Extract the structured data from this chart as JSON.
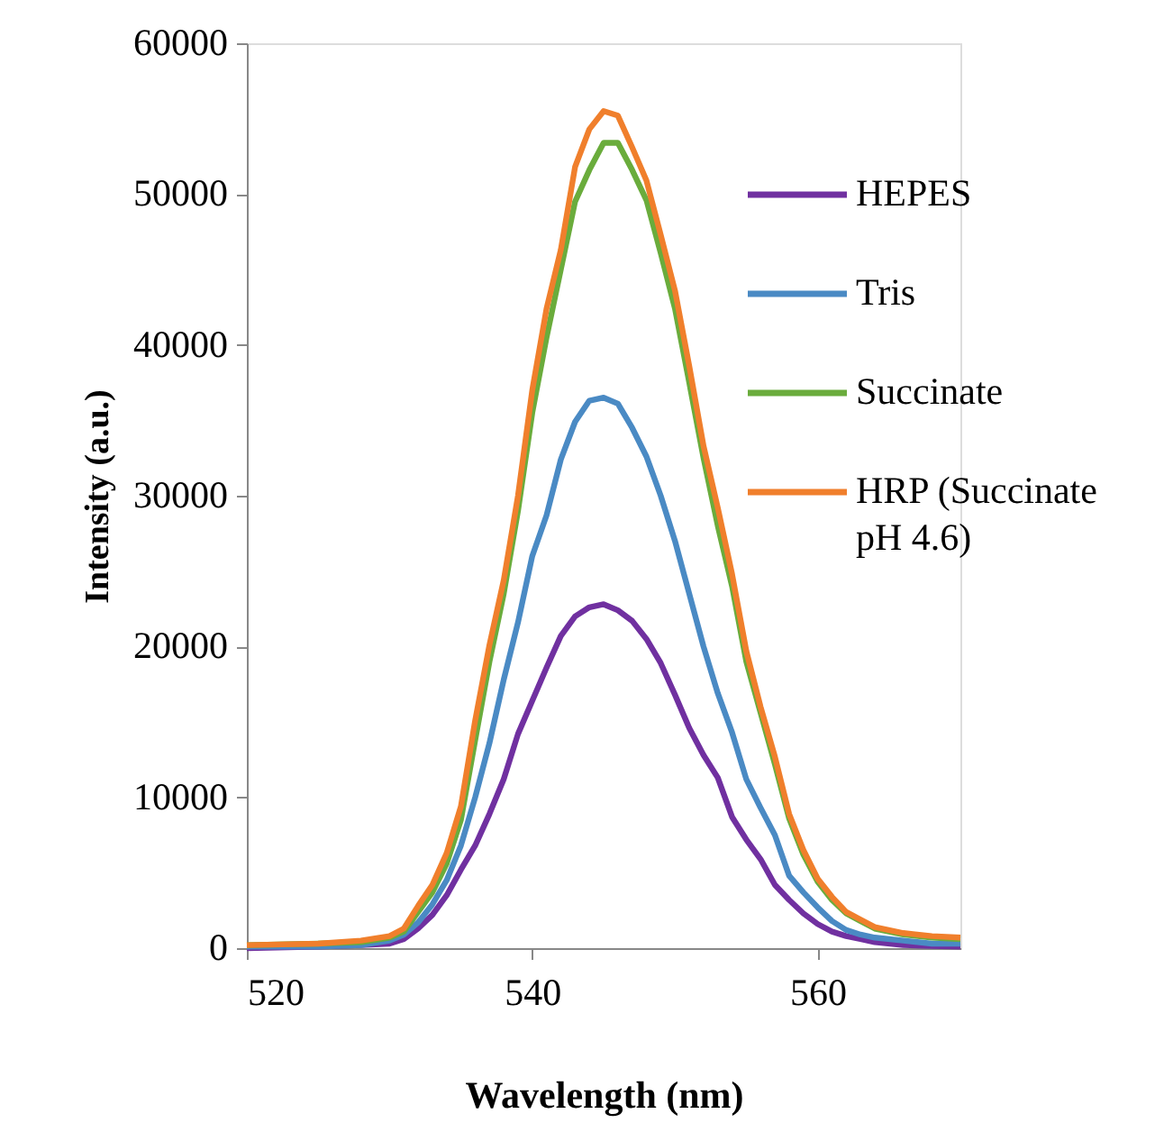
{
  "chart_data": {
    "type": "line",
    "xlabel": "Wavelength (nm)",
    "ylabel": "Intensity (a.u.)",
    "x": [
      520,
      525,
      528,
      530,
      531,
      532,
      533,
      534,
      535,
      536,
      537,
      538,
      539,
      540,
      541,
      542,
      543,
      544,
      545,
      546,
      547,
      548,
      549,
      550,
      551,
      552,
      553,
      554,
      555,
      556,
      557,
      558,
      559,
      560,
      561,
      562,
      563,
      564,
      566,
      568,
      570
    ],
    "series": [
      {
        "name": "HEPES",
        "color": "#7030a0",
        "values": [
          0,
          100,
          200,
          300,
          600,
          1300,
          2200,
          3500,
          5200,
          6800,
          8900,
          11200,
          14200,
          16400,
          18600,
          20700,
          22000,
          22600,
          22800,
          22400,
          21700,
          20500,
          18900,
          16800,
          14600,
          12800,
          11300,
          8700,
          7200,
          5900,
          4200,
          3200,
          2300,
          1600,
          1100,
          800,
          600,
          400,
          200,
          150,
          100
        ]
      },
      {
        "name": "Tris",
        "color": "#4a8ac4",
        "values": [
          100,
          100,
          200,
          500,
          900,
          1700,
          2900,
          4500,
          6800,
          10000,
          13600,
          17800,
          21600,
          26000,
          28700,
          32400,
          34900,
          36300,
          36500,
          36100,
          34500,
          32600,
          30000,
          27000,
          23500,
          20000,
          16900,
          14300,
          11200,
          9300,
          7500,
          4800,
          3700,
          2700,
          1800,
          1200,
          900,
          700,
          500,
          300,
          300
        ]
      },
      {
        "name": "Succinate",
        "color": "#6aac3c",
        "values": [
          200,
          300,
          400,
          700,
          1100,
          2400,
          3700,
          5600,
          8500,
          13800,
          19000,
          23500,
          29000,
          35500,
          40500,
          45000,
          49500,
          51600,
          53400,
          53400,
          51600,
          49600,
          46100,
          42400,
          37500,
          32500,
          28000,
          24000,
          19000,
          15600,
          12200,
          8600,
          6200,
          4400,
          3200,
          2300,
          1800,
          1300,
          900,
          700,
          600
        ]
      },
      {
        "name": "HRP (Succinate pH 4.6)",
        "color": "#f07f2c",
        "values": [
          200,
          300,
          500,
          800,
          1300,
          2800,
          4200,
          6300,
          9400,
          15100,
          20100,
          24400,
          30000,
          37000,
          42400,
          46300,
          51800,
          54300,
          55500,
          55200,
          53100,
          50900,
          47300,
          43600,
          38600,
          33300,
          29200,
          24800,
          19700,
          16000,
          12700,
          8900,
          6500,
          4600,
          3400,
          2400,
          1900,
          1400,
          1000,
          800,
          700
        ]
      }
    ],
    "xlim": [
      520,
      570
    ],
    "xticks": [
      520,
      540,
      560
    ],
    "ylim": [
      0,
      60000
    ],
    "yticks": [
      0,
      10000,
      20000,
      30000,
      40000,
      50000,
      60000
    ],
    "grid": false,
    "legend": "top right",
    "marker": "none",
    "line_style": "solid"
  }
}
